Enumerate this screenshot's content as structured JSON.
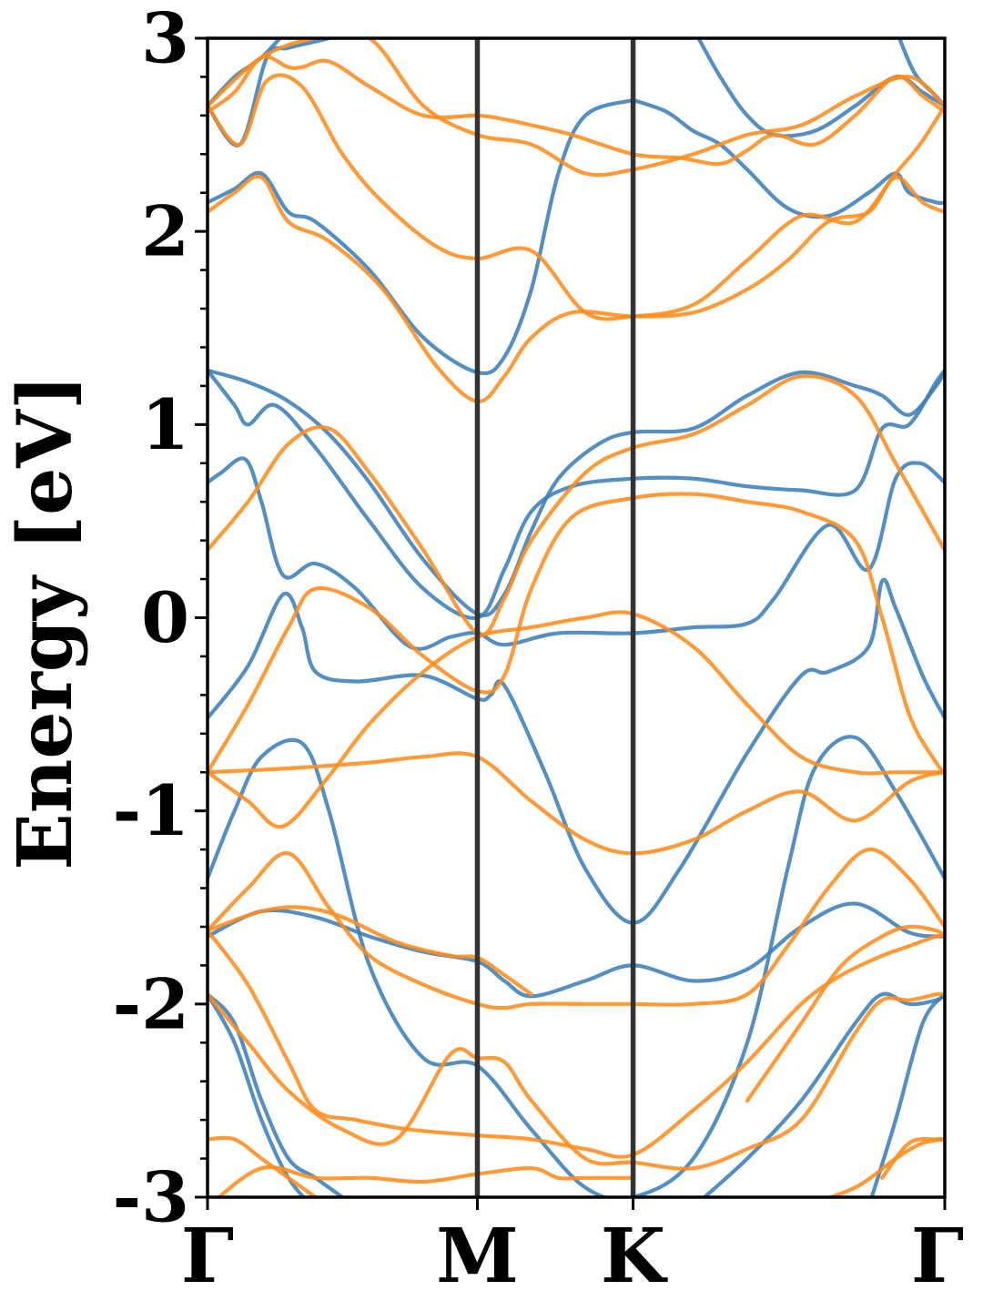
{
  "chart_data": {
    "type": "line",
    "title": "",
    "xlabel": "",
    "ylabel": "Energy [eV]",
    "ylim": [
      -3,
      3
    ],
    "yticks": [
      "3",
      "2",
      "1",
      "0",
      "-1",
      "-2",
      "-3"
    ],
    "ytick_values": [
      3,
      2,
      1,
      0,
      -1,
      -2,
      -3
    ],
    "k_path": {
      "labels": [
        "Γ",
        "M",
        "K",
        "Γ"
      ],
      "positions": [
        0,
        1,
        1.577,
        2.732
      ]
    },
    "legend": "none",
    "grid": false,
    "colors": {
      "blue": "#3b80b9",
      "orange": "#ff8c1a",
      "high_symmetry_line": "#333333"
    },
    "series": [
      {
        "color": "blue",
        "x": [
          0,
          0.15,
          0.3,
          0.45,
          0.6,
          0.8,
          1.0,
          1.1,
          1.2,
          1.3,
          1.45,
          1.577,
          1.8,
          2.0,
          2.2,
          2.4,
          2.5,
          2.6,
          2.7,
          2.732
        ],
        "y": [
          1.28,
          1.22,
          1.12,
          0.95,
          0.7,
          0.3,
          0.02,
          0.12,
          0.45,
          0.72,
          0.9,
          0.96,
          0.98,
          1.15,
          1.27,
          1.2,
          1.15,
          1.05,
          1.2,
          1.28
        ]
      },
      {
        "color": "blue",
        "x": [
          0,
          0.1,
          0.15,
          0.25,
          0.4,
          0.6,
          0.8,
          1.0,
          1.1,
          1.2,
          1.35,
          1.577,
          1.8,
          2.0,
          2.2,
          2.4,
          2.5,
          2.6,
          2.7,
          2.732
        ],
        "y": [
          1.28,
          1.1,
          1.0,
          1.1,
          0.88,
          0.5,
          0.15,
          0.0,
          0.25,
          0.55,
          0.68,
          0.72,
          0.72,
          0.68,
          0.66,
          0.66,
          0.98,
          1.0,
          1.22,
          1.28
        ]
      },
      {
        "color": "blue",
        "x": [
          0,
          0.05,
          0.14,
          0.2,
          0.28,
          0.4,
          0.55,
          0.75,
          0.9,
          1.0,
          1.1,
          1.3,
          1.577,
          1.8,
          2.0,
          2.1,
          2.3,
          2.45,
          2.55,
          2.64,
          2.732
        ],
        "y": [
          0.7,
          0.75,
          0.82,
          0.6,
          0.22,
          0.28,
          0.15,
          -0.15,
          -0.1,
          -0.08,
          -0.14,
          -0.08,
          -0.08,
          -0.05,
          -0.03,
          0.1,
          0.48,
          0.25,
          0.72,
          0.8,
          0.7
        ]
      },
      {
        "color": "blue",
        "x": [
          0,
          0.15,
          0.28,
          0.35,
          0.4,
          0.55,
          0.8,
          1.0,
          1.05,
          1.1,
          1.25,
          1.4,
          1.577,
          1.75,
          2.0,
          2.2,
          2.3,
          2.45,
          2.5,
          2.55,
          2.65,
          2.732
        ],
        "y": [
          -0.52,
          -0.25,
          0.12,
          -0.05,
          -0.28,
          -0.33,
          -0.3,
          -0.42,
          -0.4,
          -0.35,
          -0.8,
          -1.3,
          -1.58,
          -1.3,
          -0.7,
          -0.3,
          -0.28,
          -0.15,
          0.19,
          0.05,
          -0.3,
          -0.52
        ]
      },
      {
        "color": "blue",
        "x": [
          0,
          0.1,
          0.2,
          0.35,
          0.45,
          0.6,
          0.8,
          1.0,
          1.2,
          1.4,
          1.577,
          1.8,
          2.0,
          2.15,
          2.25,
          2.4,
          2.55,
          2.732
        ],
        "y": [
          -1.35,
          -1.0,
          -0.72,
          -0.65,
          -1.0,
          -1.8,
          -2.28,
          -2.32,
          -2.65,
          -2.95,
          -3.0,
          -2.8,
          -2.2,
          -1.3,
          -0.78,
          -0.62,
          -0.9,
          -1.35
        ]
      },
      {
        "color": "blue",
        "x": [
          0,
          0.2,
          0.4,
          0.6,
          0.8,
          1.0,
          1.1,
          1.2,
          1.4,
          1.577,
          1.8,
          2.0,
          2.2,
          2.4,
          2.6,
          2.732
        ],
        "y": [
          -1.65,
          -1.52,
          -1.55,
          -1.65,
          -1.73,
          -1.78,
          -1.88,
          -1.96,
          -1.88,
          -1.8,
          -1.88,
          -1.82,
          -1.6,
          -1.48,
          -1.63,
          -1.65
        ]
      },
      {
        "color": "blue",
        "x": [
          0,
          0.1,
          0.2,
          0.3,
          0.4,
          0.5,
          0.55
        ],
        "y": [
          -1.95,
          -2.1,
          -2.5,
          -2.8,
          -2.9,
          -3.0,
          -3.05
        ]
      },
      {
        "color": "blue",
        "x": [
          1.8,
          2.0,
          2.2,
          2.4,
          2.5,
          2.6,
          2.7,
          2.732
        ],
        "y": [
          -3.05,
          -2.8,
          -2.5,
          -2.1,
          -1.95,
          -2.0,
          -1.98,
          -1.95
        ]
      },
      {
        "color": "blue",
        "x": [
          0,
          0.1,
          0.2,
          0.3,
          0.4,
          0.5
        ],
        "y": [
          -1.95,
          -2.2,
          -2.6,
          -2.9,
          -3.05,
          -3.1
        ]
      },
      {
        "color": "blue",
        "x": [
          2.45,
          2.55,
          2.65,
          2.732
        ],
        "y": [
          -3.05,
          -2.6,
          -2.1,
          -1.95
        ]
      },
      {
        "color": "blue",
        "x": [
          0,
          0.1,
          0.2,
          0.3,
          0.4,
          0.6,
          0.8,
          1.0,
          1.1,
          1.2,
          1.3,
          1.4,
          1.577
        ],
        "y": [
          2.15,
          2.22,
          2.3,
          2.1,
          2.05,
          1.8,
          1.45,
          1.27,
          1.35,
          1.7,
          2.3,
          2.6,
          2.68
        ]
      },
      {
        "color": "blue",
        "x": [
          1.577,
          1.7,
          1.8,
          1.9,
          2.0,
          2.15,
          2.3,
          2.45,
          2.55,
          2.6,
          2.7,
          2.732
        ],
        "y": [
          2.68,
          2.62,
          2.52,
          2.45,
          2.32,
          2.12,
          2.08,
          2.2,
          2.3,
          2.2,
          2.15,
          2.15
        ]
      },
      {
        "color": "blue",
        "x": [
          0,
          0.12,
          0.22,
          0.3,
          0.45,
          0.55
        ],
        "y": [
          2.65,
          2.45,
          2.9,
          2.95,
          3.0,
          3.05
        ]
      },
      {
        "color": "blue",
        "x": [
          1.8,
          1.9,
          2.0,
          2.1,
          2.25,
          2.4,
          2.55,
          2.65,
          2.732
        ],
        "y": [
          3.05,
          2.8,
          2.6,
          2.5,
          2.52,
          2.65,
          2.8,
          2.72,
          2.65
        ]
      },
      {
        "color": "blue",
        "x": [
          0,
          0.1,
          0.2,
          0.3
        ],
        "y": [
          2.65,
          2.8,
          2.9,
          3.05
        ]
      },
      {
        "color": "blue",
        "x": [
          2.55,
          2.62,
          2.7,
          2.732
        ],
        "y": [
          3.05,
          2.82,
          2.7,
          2.65
        ]
      },
      {
        "color": "orange",
        "x": [
          0,
          0.12,
          0.22,
          0.35,
          0.5,
          0.65,
          0.85,
          1.0,
          1.2,
          1.4,
          1.577,
          1.8,
          2.0,
          2.2,
          2.4,
          2.55,
          2.64,
          2.732
        ],
        "y": [
          2.65,
          2.45,
          2.78,
          2.75,
          2.4,
          2.15,
          1.92,
          1.86,
          1.9,
          1.58,
          1.56,
          1.62,
          1.85,
          2.08,
          2.05,
          2.3,
          2.45,
          2.65
        ]
      },
      {
        "color": "orange",
        "x": [
          0,
          0.1,
          0.2,
          0.3,
          0.45,
          0.65,
          0.85,
          1.0,
          1.1,
          1.2,
          1.35,
          1.577,
          1.8,
          2.0,
          2.15,
          2.3,
          2.45,
          2.55,
          2.65,
          2.732
        ],
        "y": [
          2.1,
          2.2,
          2.28,
          2.05,
          1.95,
          1.7,
          1.3,
          1.12,
          1.25,
          1.45,
          1.58,
          1.56,
          1.58,
          1.7,
          1.85,
          2.05,
          2.1,
          2.28,
          2.15,
          2.1
        ]
      },
      {
        "color": "orange",
        "x": [
          0,
          0.1,
          0.2,
          0.3,
          0.35,
          0.45,
          0.6,
          0.8,
          1.0,
          1.1,
          1.2,
          1.35,
          1.577,
          1.75,
          1.9,
          2.0,
          2.1,
          2.25,
          2.4,
          2.55,
          2.65,
          2.732
        ],
        "y": [
          2.62,
          2.72,
          2.9,
          2.85,
          2.85,
          2.88,
          2.75,
          2.6,
          2.6,
          2.58,
          2.55,
          2.5,
          2.4,
          2.38,
          2.35,
          2.42,
          2.5,
          2.45,
          2.6,
          2.8,
          2.7,
          2.62
        ]
      },
      {
        "color": "orange",
        "x": [
          0,
          0.2,
          0.4,
          0.6,
          0.8,
          1.0,
          1.2,
          1.4,
          1.577,
          1.8,
          2.0,
          2.2,
          2.4,
          2.6,
          2.732
        ],
        "y": [
          2.65,
          2.9,
          3.0,
          3.0,
          2.65,
          2.5,
          2.45,
          2.3,
          2.32,
          2.4,
          2.5,
          2.55,
          2.7,
          2.8,
          2.65
        ]
      },
      {
        "color": "orange",
        "x": [
          0,
          0.15,
          0.3,
          0.45,
          0.6,
          0.8,
          1.0,
          1.1,
          1.2,
          1.4,
          1.577,
          1.8,
          2.0,
          2.2,
          2.4,
          2.55,
          2.732
        ],
        "y": [
          0.35,
          0.6,
          0.9,
          0.98,
          0.75,
          0.35,
          -0.08,
          0.1,
          0.4,
          0.75,
          0.88,
          0.95,
          1.1,
          1.25,
          1.15,
          0.8,
          0.35
        ]
      },
      {
        "color": "orange",
        "x": [
          0,
          0.15,
          0.3,
          0.4,
          0.6,
          0.8,
          1.0,
          1.1,
          1.2,
          1.35,
          1.577,
          1.8,
          2.0,
          2.2,
          2.4,
          2.5,
          2.6,
          2.7,
          2.732
        ],
        "y": [
          -0.8,
          -0.45,
          -0.05,
          0.15,
          0.05,
          -0.2,
          -0.38,
          -0.3,
          0.15,
          0.52,
          0.62,
          0.64,
          0.6,
          0.55,
          0.4,
          0.0,
          -0.5,
          -0.75,
          -0.8
        ]
      },
      {
        "color": "orange",
        "x": [
          0,
          0.3,
          0.6,
          0.8,
          1.0,
          1.2,
          1.4,
          1.577,
          1.8,
          2.0,
          2.2,
          2.4,
          2.6,
          2.732
        ],
        "y": [
          -0.8,
          -0.78,
          -0.75,
          -0.72,
          -0.72,
          -0.95,
          -1.15,
          -1.22,
          -1.15,
          -1.0,
          -0.9,
          -1.05,
          -0.85,
          -0.8
        ]
      },
      {
        "color": "orange",
        "x": [
          0,
          0.15,
          0.28,
          0.45,
          0.6,
          0.8,
          1.0,
          1.2,
          1.4,
          1.577,
          1.8,
          2.0,
          2.2,
          2.4,
          2.55,
          2.65,
          2.732
        ],
        "y": [
          -0.8,
          -0.95,
          -1.08,
          -0.82,
          -0.55,
          -0.28,
          -0.1,
          -0.05,
          0.0,
          0.02,
          -0.15,
          -0.45,
          -0.72,
          -0.8,
          -0.8,
          -0.8,
          -0.8
        ]
      },
      {
        "color": "orange",
        "x": [
          0,
          0.15,
          0.3,
          0.45,
          0.6,
          0.8,
          1.0,
          1.1,
          1.2,
          1.4,
          1.577
        ],
        "y": [
          -1.62,
          -1.4,
          -1.22,
          -1.5,
          -1.75,
          -1.9,
          -2.0,
          -2.02,
          -2.0,
          -2.0,
          -2.0
        ]
      },
      {
        "color": "orange",
        "x": [
          1.577,
          1.8,
          2.0,
          2.15,
          2.3,
          2.45,
          2.6,
          2.732
        ],
        "y": [
          -2.0,
          -2.0,
          -1.95,
          -1.7,
          -1.4,
          -1.2,
          -1.35,
          -1.6
        ]
      },
      {
        "color": "orange",
        "x": [
          0,
          0.2,
          0.35,
          0.5,
          0.7,
          0.9,
          1.0,
          1.1,
          1.2
        ],
        "y": [
          -1.62,
          -1.52,
          -1.5,
          -1.55,
          -1.68,
          -1.75,
          -1.76,
          -1.85,
          -1.95
        ]
      },
      {
        "color": "orange",
        "x": [
          2.0,
          2.2,
          2.35,
          2.5,
          2.6,
          2.7,
          2.732
        ],
        "y": [
          -2.5,
          -2.1,
          -1.8,
          -1.65,
          -1.6,
          -1.62,
          -1.65
        ]
      },
      {
        "color": "orange",
        "x": [
          0,
          0.15,
          0.3,
          0.4,
          0.55,
          0.75,
          1.0,
          1.2,
          1.4,
          1.577,
          1.8,
          2.0,
          2.2,
          2.35,
          2.5,
          2.6,
          2.7,
          2.732
        ],
        "y": [
          -1.62,
          -1.9,
          -2.3,
          -2.55,
          -2.6,
          -2.65,
          -2.68,
          -2.7,
          -2.75,
          -2.78,
          -2.55,
          -2.3,
          -2.0,
          -1.85,
          -1.75,
          -1.7,
          -1.65,
          -1.65
        ]
      },
      {
        "color": "orange",
        "x": [
          0,
          0.15,
          0.3,
          0.5,
          0.7,
          0.9,
          1.0,
          1.1,
          1.2,
          1.4,
          1.577,
          1.8,
          2.0,
          2.2,
          2.4,
          2.5,
          2.6,
          2.7,
          2.732
        ],
        "y": [
          -1.95,
          -2.2,
          -2.45,
          -2.65,
          -2.7,
          -2.26,
          -2.28,
          -2.3,
          -2.5,
          -2.8,
          -2.82,
          -2.85,
          -2.75,
          -2.6,
          -2.15,
          -1.98,
          -1.98,
          -1.95,
          -1.95
        ]
      },
      {
        "color": "orange",
        "x": [
          0,
          0.1,
          0.2,
          0.3,
          0.4,
          0.5
        ],
        "y": [
          -2.7,
          -2.7,
          -2.8,
          -2.9,
          -3.0,
          -3.1
        ]
      },
      {
        "color": "orange",
        "x": [
          2.5,
          2.6,
          2.7,
          2.732
        ],
        "y": [
          -2.9,
          -2.72,
          -2.7,
          -2.7
        ]
      },
      {
        "color": "orange",
        "x": [
          0,
          0.2,
          0.4,
          0.6,
          0.8,
          1.0,
          1.2,
          1.3,
          1.4,
          1.577
        ],
        "y": [
          -3.05,
          -2.85,
          -2.9,
          -2.9,
          -2.92,
          -2.88,
          -2.85,
          -2.9,
          -2.9,
          -2.9
        ]
      },
      {
        "color": "orange",
        "x": [
          2.2,
          2.4,
          2.55,
          2.65,
          2.732
        ],
        "y": [
          -3.05,
          -2.95,
          -2.8,
          -2.72,
          -2.7
        ]
      }
    ]
  }
}
